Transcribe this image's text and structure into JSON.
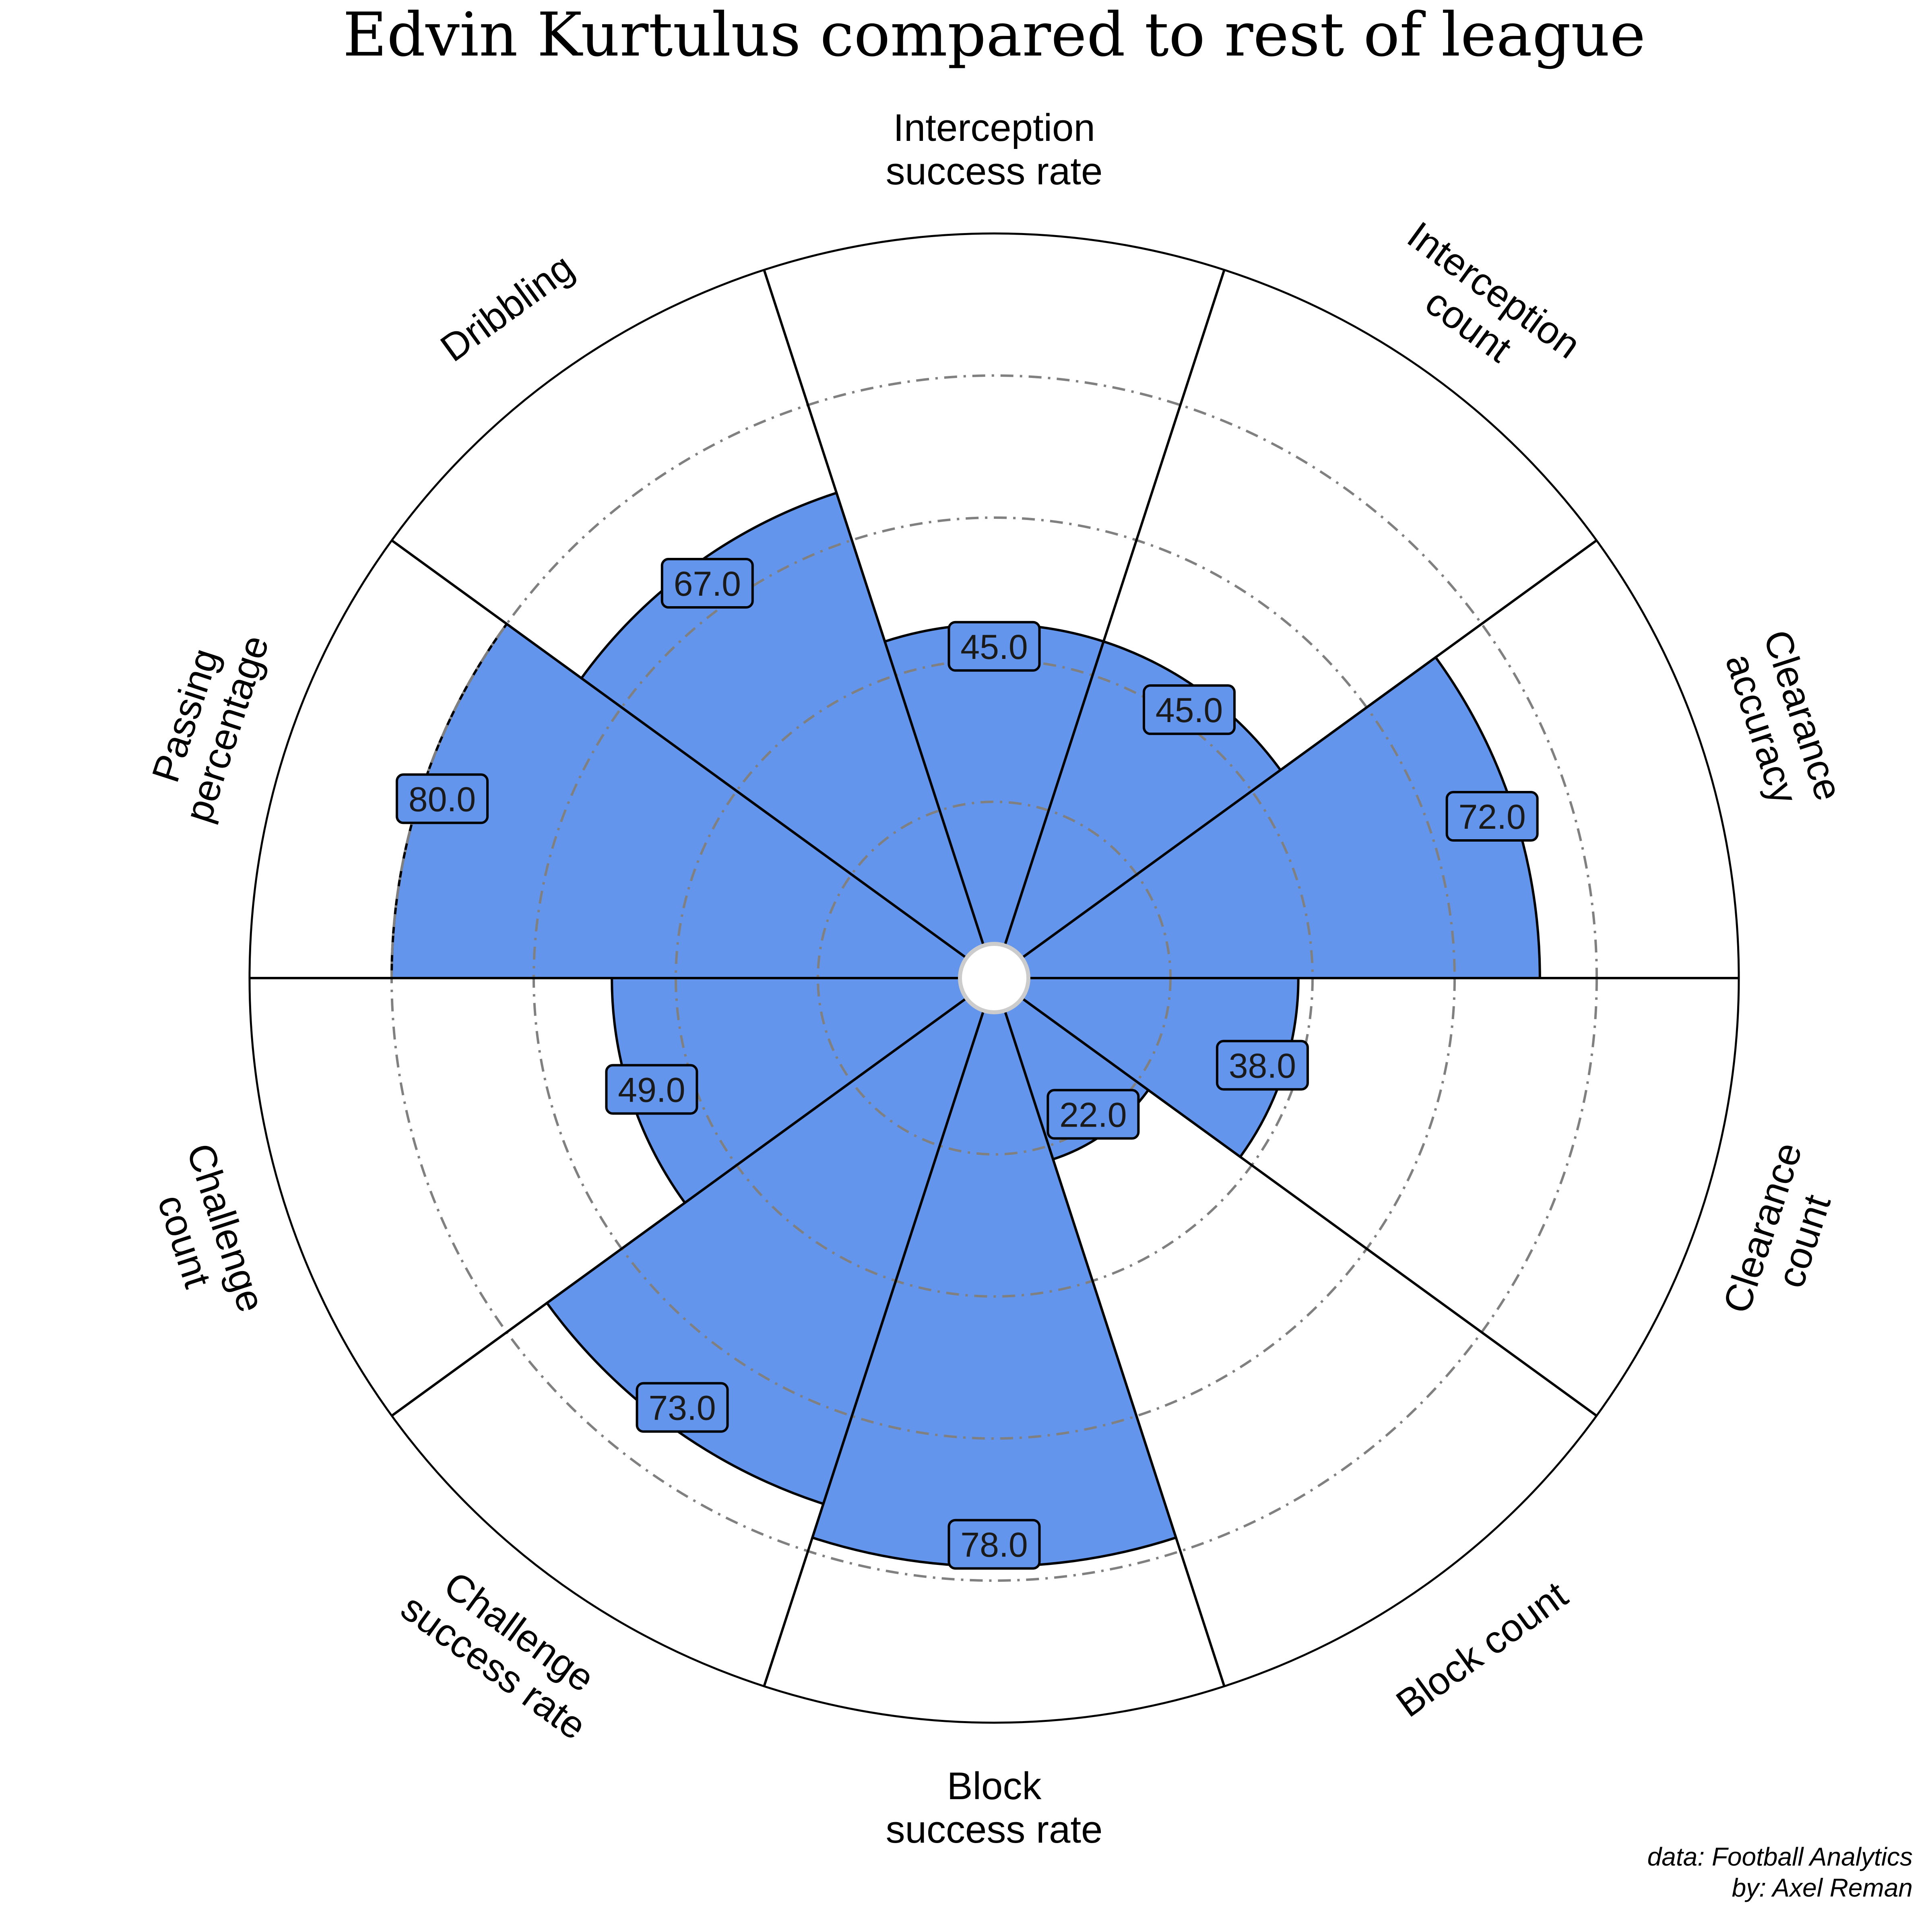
{
  "chart_data": {
    "type": "pizza",
    "title": "Edvin Kurtulus compared to rest of league",
    "ylim": [
      0,
      100
    ],
    "gridlines": [
      20,
      40,
      60,
      80
    ],
    "categories": [
      {
        "label": "Interception\nsuccess rate",
        "value": 45.0,
        "display": "45.0"
      },
      {
        "label": "Interception\ncount",
        "value": 45.0,
        "display": "45.0"
      },
      {
        "label": "Clearance\naccuracy",
        "value": 72.0,
        "display": "72.0"
      },
      {
        "label": "Clearance\ncount",
        "value": 38.0,
        "display": "38.0"
      },
      {
        "label": "Block count",
        "value": 22.0,
        "display": "22.0"
      },
      {
        "label": "Block\nsuccess rate",
        "value": 78.0,
        "display": "78.0"
      },
      {
        "label": "Challenge\nsuccess rate",
        "value": 73.0,
        "display": "73.0"
      },
      {
        "label": "Challenge\ncount",
        "value": 49.0,
        "display": "49.0"
      },
      {
        "label": "Passing\npercentage",
        "value": 80.0,
        "display": "80.0"
      },
      {
        "label": "Dribbling",
        "value": 67.0,
        "display": "67.0"
      }
    ],
    "colors": {
      "slice_fill": "#6495ED",
      "slice_edge": "#000000",
      "grid": "#808080",
      "value_box": "#6495ED",
      "center": "#ffffff",
      "center_edge": "#cccccc"
    }
  },
  "credits": {
    "line1": "data: Football Analytics",
    "line2": "by: Axel Reman"
  }
}
